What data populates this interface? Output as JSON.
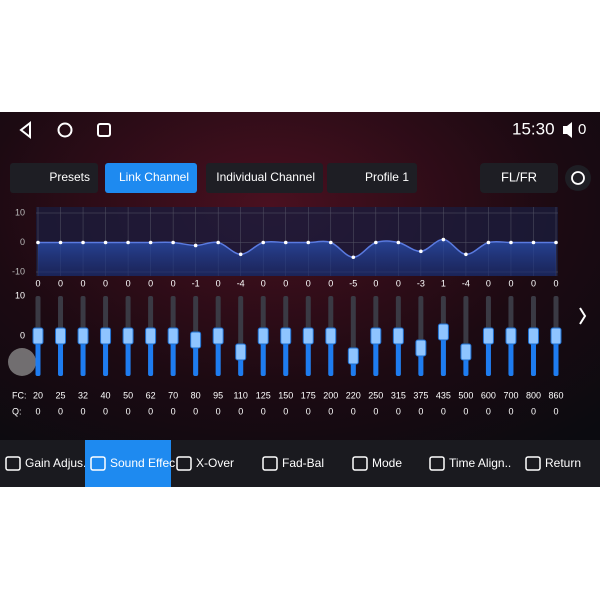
{
  "status": {
    "time": "15:30",
    "volume": "0"
  },
  "tabs": [
    "Presets",
    "Link Channel",
    "Individual Channel",
    "Profile 1"
  ],
  "active_tab": 1,
  "channel": "FL/FR",
  "graph": {
    "yticks": [
      10,
      0,
      -10
    ],
    "ylim": [
      10,
      -10
    ]
  },
  "sliders": {
    "ticks": [
      10,
      0
    ],
    "ylim": [
      10,
      -10
    ]
  },
  "fc_label": "FC:",
  "q_label": "Q:",
  "bands": {
    "fc": [
      20,
      25,
      32,
      40,
      50,
      62,
      70,
      80,
      95,
      110,
      125,
      150,
      175,
      200,
      220,
      250,
      315,
      375,
      435,
      500,
      600,
      700,
      800,
      860
    ],
    "gain": [
      0,
      0,
      0,
      0,
      0,
      0,
      0,
      -1,
      0,
      -4,
      0,
      0,
      0,
      0,
      -5,
      0,
      0,
      -3,
      1,
      -4,
      0,
      0,
      0,
      0
    ],
    "q": [
      0,
      0,
      0,
      0,
      0,
      0,
      0,
      0,
      0,
      0,
      0,
      0,
      0,
      0,
      0,
      0,
      0,
      0,
      0,
      0,
      0,
      0,
      0,
      0
    ]
  },
  "nav": [
    "Gain Adjus..",
    "Sound Effec",
    "X-Over",
    "Fad-Bal",
    "Mode",
    "Time Align..",
    "Return"
  ],
  "active_nav": 1
}
